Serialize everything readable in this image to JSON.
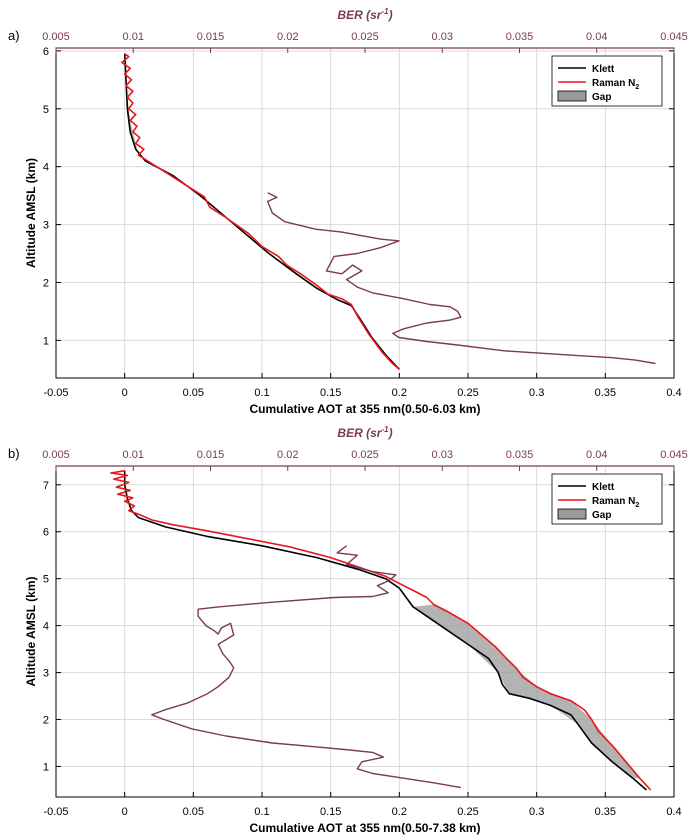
{
  "chart_data": [
    {
      "type": "line",
      "panel_label": "a)",
      "xlabel": "Cumulative AOT at 355 nm(0.50-6.03 km)",
      "ylabel": "Altitude AMSL (km)",
      "xlim": [
        -0.05,
        0.4
      ],
      "ylim": [
        0.35,
        6.05
      ],
      "xticks": [
        "-0.05",
        "0",
        "0.05",
        "0.1",
        "0.15",
        "0.2",
        "0.25",
        "0.3",
        "0.35",
        "0.4"
      ],
      "yticks": [
        "1",
        "2",
        "3",
        "4",
        "5",
        "6"
      ],
      "top_axis": {
        "label_main": "BER (sr",
        "label_exp": "-1",
        "label_close": ")",
        "xlim": [
          0.005,
          0.045
        ],
        "ticks": [
          "0.005",
          "0.01",
          "0.015",
          "0.02",
          "0.025",
          "0.03",
          "0.035",
          "0.04",
          "0.045"
        ]
      },
      "grid": true,
      "legend": {
        "position": "top-right"
      },
      "series": [
        {
          "name": "Klett",
          "color": "#000000",
          "points": [
            [
              0.0,
              5.95
            ],
            [
              0.001,
              5.5
            ],
            [
              0.002,
              5.0
            ],
            [
              0.004,
              4.6
            ],
            [
              0.008,
              4.3
            ],
            [
              0.015,
              4.1
            ],
            [
              0.035,
              3.85
            ],
            [
              0.055,
              3.5
            ],
            [
              0.075,
              3.1
            ],
            [
              0.09,
              2.8
            ],
            [
              0.105,
              2.5
            ],
            [
              0.125,
              2.15
            ],
            [
              0.14,
              1.9
            ],
            [
              0.155,
              1.7
            ],
            [
              0.165,
              1.6
            ],
            [
              0.172,
              1.35
            ],
            [
              0.18,
              1.05
            ],
            [
              0.19,
              0.75
            ],
            [
              0.2,
              0.5
            ]
          ]
        },
        {
          "name": "Raman N2",
          "name_main": "Raman N",
          "name_sub": "2",
          "color": "#e8161d",
          "points": [
            [
              0.0,
              5.95
            ],
            [
              0.003,
              5.9
            ],
            [
              -0.002,
              5.8
            ],
            [
              0.004,
              5.7
            ],
            [
              0.0,
              5.6
            ],
            [
              0.005,
              5.5
            ],
            [
              0.001,
              5.4
            ],
            [
              0.006,
              5.3
            ],
            [
              0.002,
              5.2
            ],
            [
              0.006,
              5.1
            ],
            [
              0.003,
              5.0
            ],
            [
              0.008,
              4.9
            ],
            [
              0.004,
              4.8
            ],
            [
              0.009,
              4.7
            ],
            [
              0.006,
              4.6
            ],
            [
              0.011,
              4.5
            ],
            [
              0.008,
              4.4
            ],
            [
              0.014,
              4.3
            ],
            [
              0.01,
              4.2
            ],
            [
              0.02,
              4.05
            ],
            [
              0.03,
              3.9
            ],
            [
              0.04,
              3.75
            ],
            [
              0.058,
              3.48
            ],
            [
              0.062,
              3.3
            ],
            [
              0.072,
              3.15
            ],
            [
              0.09,
              2.85
            ],
            [
              0.1,
              2.62
            ],
            [
              0.112,
              2.45
            ],
            [
              0.118,
              2.3
            ],
            [
              0.128,
              2.15
            ],
            [
              0.14,
              1.95
            ],
            [
              0.148,
              1.8
            ],
            [
              0.158,
              1.72
            ],
            [
              0.165,
              1.62
            ],
            [
              0.17,
              1.4
            ],
            [
              0.178,
              1.1
            ],
            [
              0.188,
              0.78
            ],
            [
              0.195,
              0.6
            ],
            [
              0.2,
              0.5
            ]
          ]
        },
        {
          "name": "BER",
          "color": "#7a3a55",
          "axis": "top",
          "points": [
            [
              0.0187,
              3.55
            ],
            [
              0.0193,
              3.47
            ],
            [
              0.0187,
              3.4
            ],
            [
              0.019,
              3.2
            ],
            [
              0.0198,
              3.05
            ],
            [
              0.0218,
              2.92
            ],
            [
              0.0235,
              2.87
            ],
            [
              0.026,
              2.75
            ],
            [
              0.0272,
              2.72
            ],
            [
              0.026,
              2.6
            ],
            [
              0.0245,
              2.5
            ],
            [
              0.023,
              2.45
            ],
            [
              0.0228,
              2.35
            ],
            [
              0.0225,
              2.2
            ],
            [
              0.0235,
              2.15
            ],
            [
              0.0242,
              2.3
            ],
            [
              0.0248,
              2.2
            ],
            [
              0.0238,
              2.05
            ],
            [
              0.0245,
              1.92
            ],
            [
              0.0255,
              1.82
            ],
            [
              0.0275,
              1.72
            ],
            [
              0.0292,
              1.62
            ],
            [
              0.0305,
              1.58
            ],
            [
              0.031,
              1.5
            ],
            [
              0.0312,
              1.4
            ],
            [
              0.0305,
              1.35
            ],
            [
              0.029,
              1.3
            ],
            [
              0.0275,
              1.2
            ],
            [
              0.0268,
              1.12
            ],
            [
              0.0272,
              1.05
            ],
            [
              0.029,
              0.98
            ],
            [
              0.031,
              0.92
            ],
            [
              0.034,
              0.82
            ],
            [
              0.038,
              0.75
            ],
            [
              0.041,
              0.7
            ],
            [
              0.0425,
              0.66
            ],
            [
              0.0438,
              0.6
            ]
          ]
        }
      ],
      "gap_band": [
        [
          0.0,
          5.95
        ],
        [
          0.0,
          5.6
        ],
        [
          0.001,
          5.4
        ],
        [
          0.002,
          5.2
        ],
        [
          0.003,
          5.0
        ],
        [
          0.004,
          4.8
        ],
        [
          0.006,
          4.6
        ],
        [
          0.008,
          4.4
        ],
        [
          0.01,
          4.2
        ],
        [
          0.02,
          4.05
        ],
        [
          0.015,
          4.1
        ],
        [
          0.008,
          4.3
        ],
        [
          0.004,
          4.6
        ],
        [
          0.002,
          5.0
        ],
        [
          0.001,
          5.5
        ]
      ]
    },
    {
      "type": "line",
      "panel_label": "b)",
      "xlabel": "Cumulative AOT at 355 nm(0.50-7.38 km)",
      "ylabel": "Altitude AMSL (km)",
      "xlim": [
        -0.05,
        0.4
      ],
      "ylim": [
        0.35,
        7.4
      ],
      "xticks": [
        "-0.05",
        "0",
        "0.05",
        "0.1",
        "0.15",
        "0.2",
        "0.25",
        "0.3",
        "0.35",
        "0.4"
      ],
      "yticks": [
        "1",
        "2",
        "3",
        "4",
        "5",
        "6",
        "7"
      ],
      "top_axis": {
        "label_main": "BER (sr",
        "label_exp": "-1",
        "label_close": ")",
        "xlim": [
          0.005,
          0.045
        ],
        "ticks": [
          "0.005",
          "0.01",
          "0.015",
          "0.02",
          "0.025",
          "0.03",
          "0.035",
          "0.04",
          "0.045"
        ]
      },
      "grid": true,
      "legend": {
        "position": "top-right"
      },
      "series": [
        {
          "name": "Klett",
          "color": "#000000",
          "points": [
            [
              0.0,
              7.3
            ],
            [
              0.0,
              7.0
            ],
            [
              0.002,
              6.7
            ],
            [
              0.005,
              6.45
            ],
            [
              0.01,
              6.3
            ],
            [
              0.03,
              6.1
            ],
            [
              0.06,
              5.9
            ],
            [
              0.1,
              5.7
            ],
            [
              0.14,
              5.45
            ],
            [
              0.17,
              5.2
            ],
            [
              0.19,
              5.0
            ],
            [
              0.2,
              4.8
            ],
            [
              0.205,
              4.6
            ],
            [
              0.21,
              4.4
            ],
            [
              0.22,
              4.2
            ],
            [
              0.235,
              3.9
            ],
            [
              0.25,
              3.6
            ],
            [
              0.265,
              3.3
            ],
            [
              0.272,
              3.0
            ],
            [
              0.275,
              2.75
            ],
            [
              0.28,
              2.55
            ],
            [
              0.295,
              2.45
            ],
            [
              0.31,
              2.3
            ],
            [
              0.325,
              2.1
            ],
            [
              0.33,
              1.9
            ],
            [
              0.34,
              1.5
            ],
            [
              0.355,
              1.1
            ],
            [
              0.37,
              0.75
            ],
            [
              0.38,
              0.5
            ]
          ]
        },
        {
          "name": "Raman N2",
          "name_main": "Raman N",
          "name_sub": "2",
          "color": "#e8161d",
          "points": [
            [
              0.0,
              7.3
            ],
            [
              -0.01,
              7.25
            ],
            [
              0.002,
              7.2
            ],
            [
              -0.008,
              7.12
            ],
            [
              0.003,
              7.05
            ],
            [
              -0.006,
              6.95
            ],
            [
              0.004,
              6.88
            ],
            [
              -0.005,
              6.8
            ],
            [
              0.006,
              6.72
            ],
            [
              0.0,
              6.65
            ],
            [
              0.007,
              6.55
            ],
            [
              0.003,
              6.45
            ],
            [
              0.012,
              6.35
            ],
            [
              0.02,
              6.25
            ],
            [
              0.035,
              6.15
            ],
            [
              0.06,
              6.02
            ],
            [
              0.09,
              5.85
            ],
            [
              0.12,
              5.68
            ],
            [
              0.15,
              5.45
            ],
            [
              0.175,
              5.2
            ],
            [
              0.19,
              5.05
            ],
            [
              0.2,
              4.9
            ],
            [
              0.21,
              4.75
            ],
            [
              0.22,
              4.6
            ],
            [
              0.225,
              4.45
            ],
            [
              0.235,
              4.3
            ],
            [
              0.25,
              4.05
            ],
            [
              0.26,
              3.8
            ],
            [
              0.27,
              3.55
            ],
            [
              0.278,
              3.3
            ],
            [
              0.285,
              3.1
            ],
            [
              0.29,
              2.9
            ],
            [
              0.3,
              2.7
            ],
            [
              0.31,
              2.55
            ],
            [
              0.325,
              2.4
            ],
            [
              0.335,
              2.2
            ],
            [
              0.34,
              2.0
            ],
            [
              0.345,
              1.75
            ],
            [
              0.355,
              1.45
            ],
            [
              0.365,
              1.1
            ],
            [
              0.375,
              0.75
            ],
            [
              0.383,
              0.5
            ]
          ]
        },
        {
          "name": "BER",
          "color": "#7a3a55",
          "axis": "top",
          "points": [
            [
              0.0238,
              5.7
            ],
            [
              0.0232,
              5.55
            ],
            [
              0.0245,
              5.5
            ],
            [
              0.0238,
              5.3
            ],
            [
              0.0255,
              5.15
            ],
            [
              0.027,
              5.08
            ],
            [
              0.0265,
              4.95
            ],
            [
              0.0258,
              4.85
            ],
            [
              0.0265,
              4.7
            ],
            [
              0.0255,
              4.62
            ],
            [
              0.023,
              4.6
            ],
            [
              0.019,
              4.5
            ],
            [
              0.0155,
              4.4
            ],
            [
              0.0142,
              4.35
            ],
            [
              0.0142,
              4.2
            ],
            [
              0.0147,
              4.0
            ],
            [
              0.0152,
              3.9
            ],
            [
              0.0155,
              3.82
            ],
            [
              0.0157,
              3.95
            ],
            [
              0.0163,
              4.05
            ],
            [
              0.0165,
              3.8
            ],
            [
              0.0155,
              3.6
            ],
            [
              0.0158,
              3.4
            ],
            [
              0.0162,
              3.25
            ],
            [
              0.0165,
              3.1
            ],
            [
              0.0162,
              2.9
            ],
            [
              0.0155,
              2.7
            ],
            [
              0.0148,
              2.55
            ],
            [
              0.0135,
              2.35
            ],
            [
              0.012,
              2.2
            ],
            [
              0.0112,
              2.1
            ],
            [
              0.012,
              2.0
            ],
            [
              0.0138,
              1.8
            ],
            [
              0.016,
              1.65
            ],
            [
              0.019,
              1.5
            ],
            [
              0.0218,
              1.42
            ],
            [
              0.024,
              1.35
            ],
            [
              0.0255,
              1.3
            ],
            [
              0.0262,
              1.2
            ],
            [
              0.0248,
              1.1
            ],
            [
              0.0245,
              0.95
            ],
            [
              0.0255,
              0.85
            ],
            [
              0.0275,
              0.75
            ],
            [
              0.0295,
              0.65
            ],
            [
              0.0312,
              0.55
            ]
          ]
        }
      ],
      "gap_band": [
        [
          0.21,
          4.4
        ],
        [
          0.225,
          4.45
        ],
        [
          0.25,
          4.05
        ],
        [
          0.27,
          3.55
        ],
        [
          0.285,
          3.1
        ],
        [
          0.3,
          2.7
        ],
        [
          0.325,
          2.4
        ],
        [
          0.34,
          2.0
        ],
        [
          0.355,
          1.45
        ],
        [
          0.375,
          0.75
        ],
        [
          0.37,
          0.75
        ],
        [
          0.355,
          1.1
        ],
        [
          0.34,
          1.5
        ],
        [
          0.33,
          1.9
        ],
        [
          0.31,
          2.3
        ],
        [
          0.28,
          2.55
        ],
        [
          0.272,
          3.0
        ],
        [
          0.25,
          3.6
        ],
        [
          0.22,
          4.2
        ]
      ]
    }
  ]
}
